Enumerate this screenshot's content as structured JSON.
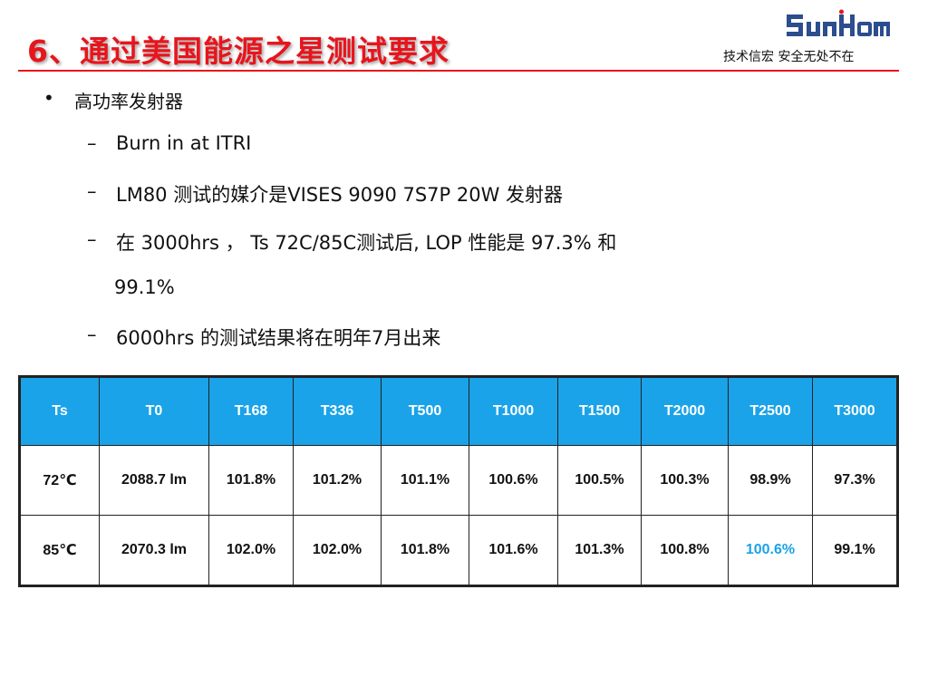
{
  "header": {
    "title": "6、通过美国能源之星测试要求",
    "logo_text": "SunHom",
    "slogan": "技术信宏  安全无处不在"
  },
  "content": {
    "bullet": "高功率发射器",
    "items": [
      "Burn in at ITRI",
      "LM80 测试的媒介是VISES 9090 7S7P 20W 发射器",
      "在 3000hrs  ，  Ts 72C/85C测试后,  LOP 性能是 97.3% 和",
      "6000hrs 的测试结果将在明年7月出来"
    ],
    "item3_continuation": "99.1%",
    "bullet_symbol": "•",
    "dash_symbol": "–"
  },
  "table": {
    "headers": [
      "Ts",
      "T0",
      "T168",
      "T336",
      "T500",
      "T1000",
      "T1500",
      "T2000",
      "T2500",
      "T3000"
    ],
    "rows": [
      [
        "72℃",
        "2088.7 lm",
        "101.8%",
        "101.2%",
        "101.1%",
        "100.6%",
        "100.5%",
        "100.3%",
        "98.9%",
        "97.3%"
      ],
      [
        "85℃",
        "2070.3 lm",
        "102.0%",
        "102.0%",
        "101.8%",
        "101.6%",
        "101.3%",
        "100.8%",
        "100.6%",
        "99.1%"
      ]
    ]
  },
  "colors": {
    "title_red": "#e8141c",
    "header_blue": "#1aa3e8",
    "highlight_blue": "#1aa3e8"
  }
}
